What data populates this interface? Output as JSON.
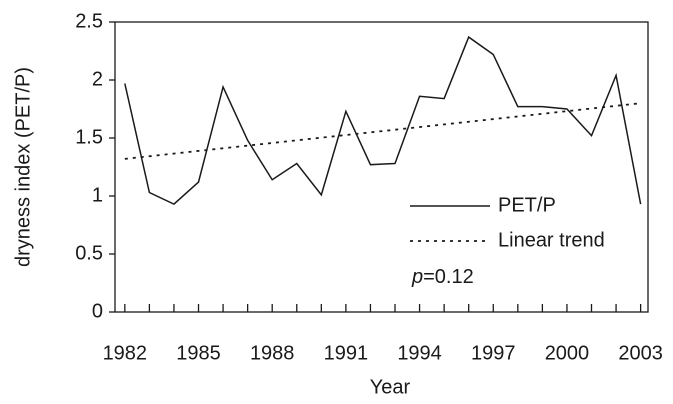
{
  "chart_data": {
    "type": "line",
    "x_label": "Year",
    "y_label": "dryness index (PET/P)",
    "x": [
      1982,
      1983,
      1984,
      1985,
      1986,
      1987,
      1988,
      1989,
      1990,
      1991,
      1992,
      1993,
      1994,
      1995,
      1996,
      1997,
      1998,
      1999,
      2000,
      2001,
      2002,
      2003
    ],
    "series": [
      {
        "name": "PET/P",
        "color": "#1a1a1a",
        "dash": "solid",
        "values": [
          1.97,
          1.03,
          0.93,
          1.12,
          1.94,
          1.48,
          1.14,
          1.28,
          1.01,
          1.73,
          1.27,
          1.28,
          1.86,
          1.84,
          2.37,
          2.22,
          1.77,
          1.77,
          1.75,
          1.52,
          2.04,
          0.93
        ]
      },
      {
        "name": "Linear trend",
        "color": "#1a1a1a",
        "dash": "dotted",
        "x": [
          1982,
          2003
        ],
        "values": [
          1.32,
          1.8
        ]
      }
    ],
    "annotation": {
      "italic": "p",
      "text": "=0.12"
    },
    "xlim": [
      1981.6,
      2003.3
    ],
    "ylim": [
      0,
      2.5
    ],
    "xticks": [
      1982,
      1985,
      1988,
      1991,
      1994,
      1997,
      2000,
      2003
    ],
    "xminorticks": [
      1982,
      1983,
      1984,
      1985,
      1986,
      1987,
      1988,
      1989,
      1990,
      1991,
      1992,
      1993,
      1994,
      1995,
      1996,
      1997,
      1998,
      1999,
      2000,
      2001,
      2002,
      2003
    ],
    "yticks": [
      0,
      0.5,
      1,
      1.5,
      2,
      2.5
    ],
    "grid": false
  }
}
